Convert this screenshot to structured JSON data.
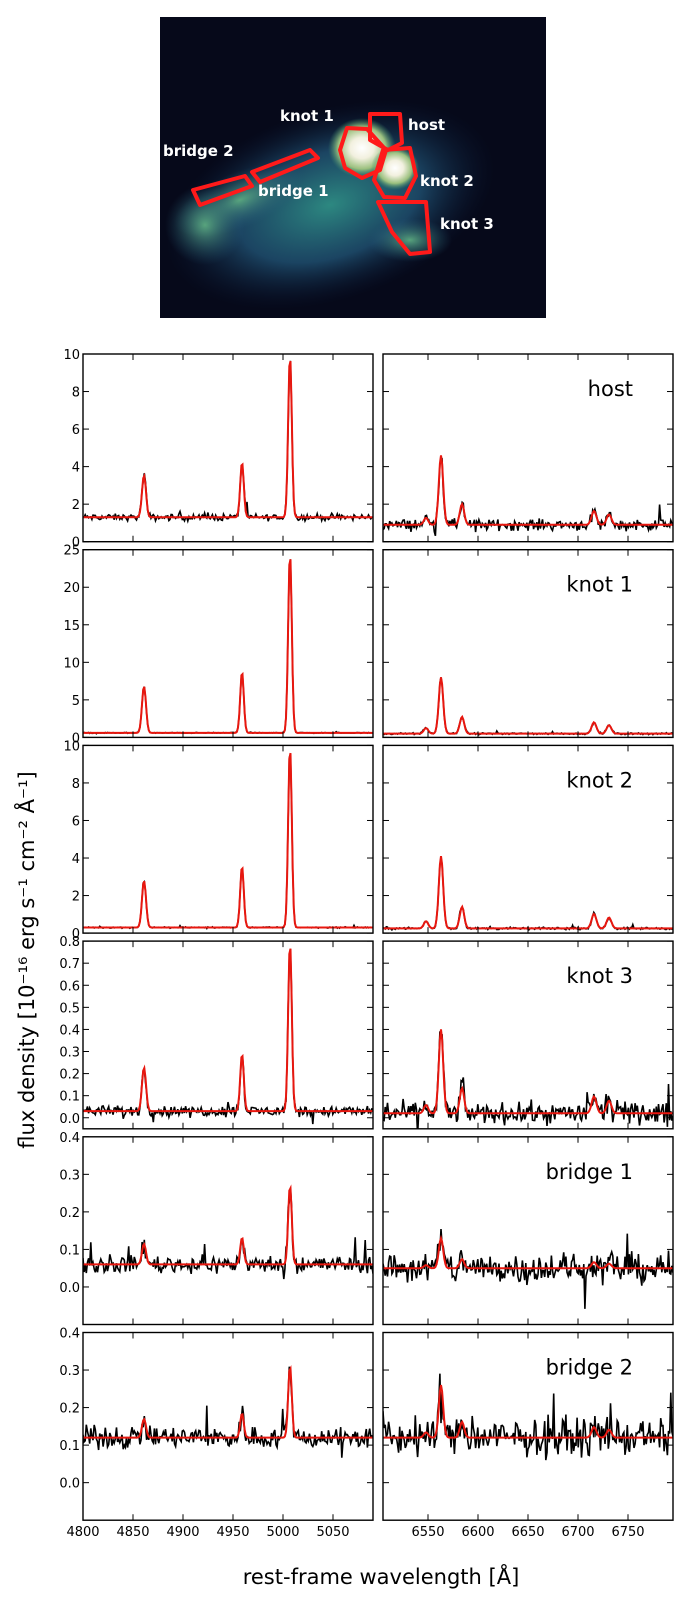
{
  "image_panel": {
    "regions": [
      {
        "name": "knot 1"
      },
      {
        "name": "host"
      },
      {
        "name": "bridge 2"
      },
      {
        "name": "bridge 1"
      },
      {
        "name": "knot 2"
      },
      {
        "name": "knot 3"
      }
    ]
  },
  "chart_data": {
    "type": "line",
    "xlabel": "rest-frame wavelength [Å]",
    "ylabel": "flux density [10⁻¹⁶ erg s⁻¹ cm⁻² Å⁻¹]",
    "columns": [
      {
        "xlim": [
          4800,
          5090
        ],
        "ticks": [
          4800,
          4850,
          4900,
          4950,
          5000,
          5050
        ],
        "lines": [
          {
            "c": 4861,
            "w": 2.0,
            "r": 0.26
          },
          {
            "c": 4959,
            "w": 1.8,
            "r": 0.34
          },
          {
            "c": 5007,
            "w": 1.8,
            "r": 1.0
          }
        ]
      },
      {
        "xlim": [
          6505,
          6795
        ],
        "ticks": [
          6550,
          6600,
          6650,
          6700,
          6750
        ],
        "lines": [
          {
            "c": 6548,
            "w": 2.2,
            "r": 0.1
          },
          {
            "c": 6563,
            "w": 2.2,
            "r": 1.0
          },
          {
            "c": 6584,
            "w": 2.2,
            "r": 0.3
          },
          {
            "c": 6716,
            "w": 2.4,
            "r": 0.2
          },
          {
            "c": 6731,
            "w": 2.4,
            "r": 0.15
          }
        ]
      }
    ],
    "panels": [
      {
        "label": "host",
        "ylim": [
          0,
          10
        ],
        "yticks": [
          0,
          2,
          4,
          6,
          8,
          10
        ],
        "yticklabels": [
          "0",
          "2",
          "4",
          "6",
          "8",
          "10"
        ],
        "continuum": [
          1.3,
          0.9
        ],
        "peaks": [
          9.9,
          4.6
        ],
        "noise": [
          0.15,
          0.25
        ]
      },
      {
        "label": "knot 1",
        "ylim": [
          0,
          25
        ],
        "yticks": [
          0,
          5,
          10,
          15,
          20,
          25
        ],
        "yticklabels": [
          "0",
          "5",
          "10",
          "15",
          "20",
          "25"
        ],
        "continuum": [
          0.6,
          0.5
        ],
        "peaks": [
          24.5,
          8.0
        ],
        "noise": [
          0.05,
          0.1
        ]
      },
      {
        "label": "knot 2",
        "ylim": [
          0,
          10
        ],
        "yticks": [
          0,
          2,
          4,
          6,
          8,
          10
        ],
        "yticklabels": [
          "0",
          "2",
          "4",
          "6",
          "8",
          "10"
        ],
        "continuum": [
          0.3,
          0.25
        ],
        "peaks": [
          9.9,
          4.1
        ],
        "noise": [
          0.03,
          0.05
        ]
      },
      {
        "label": "knot 3",
        "ylim": [
          -0.05,
          0.8
        ],
        "yticks": [
          0,
          0.1,
          0.2,
          0.3,
          0.4,
          0.5,
          0.6,
          0.7,
          0.8
        ],
        "yticklabels": [
          "0.0",
          "0.1",
          "0.2",
          "0.3",
          "0.4",
          "0.5",
          "0.6",
          "0.7",
          "0.8"
        ],
        "continuum": [
          0.03,
          0.02
        ],
        "peaks": [
          0.79,
          0.4
        ],
        "noise": [
          0.02,
          0.04
        ]
      },
      {
        "label": "bridge 1",
        "ylim": [
          -0.1,
          0.4
        ],
        "yticks": [
          0,
          0.1,
          0.2,
          0.3,
          0.4
        ],
        "yticklabels": [
          "0.0",
          "0.1",
          "0.2",
          "0.3",
          "0.4"
        ],
        "continuum": [
          0.06,
          0.05
        ],
        "peaks": [
          0.27,
          0.13
        ],
        "noise": [
          0.02,
          0.035
        ]
      },
      {
        "label": "bridge 2",
        "ylim": [
          -0.1,
          0.4
        ],
        "yticks": [
          0,
          0.1,
          0.2,
          0.3,
          0.4
        ],
        "yticklabels": [
          "0.0",
          "0.1",
          "0.2",
          "0.3",
          "0.4"
        ],
        "continuum": [
          0.12,
          0.12
        ],
        "peaks": [
          0.31,
          0.26
        ],
        "noise": [
          0.025,
          0.04
        ]
      }
    ]
  },
  "colors": {
    "data": "#000000",
    "fit": "#e8170f",
    "region": "#ff1a1a"
  }
}
